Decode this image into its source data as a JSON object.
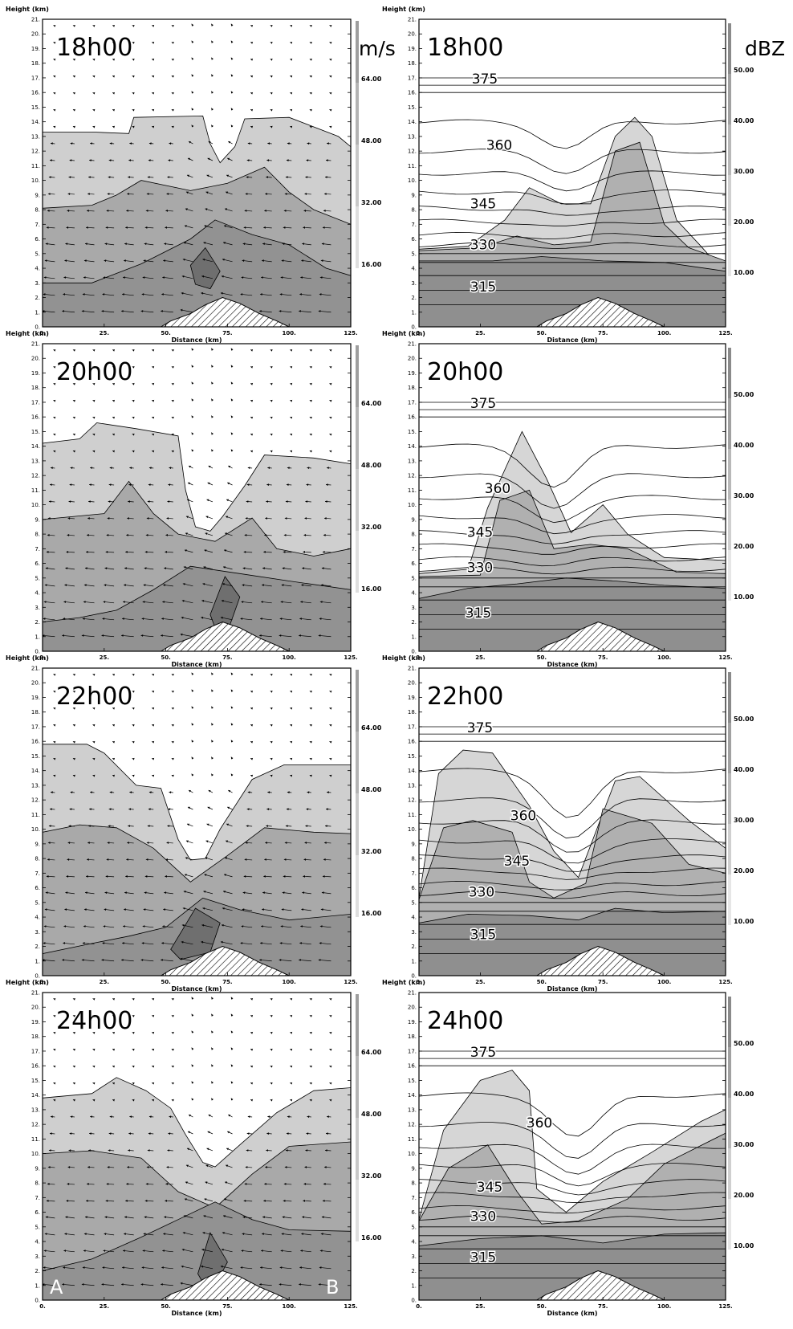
{
  "figure": {
    "y_axis_label": "Height (km)",
    "x_axis_label": "Distance (km)",
    "x_ticks": [
      "0.",
      "25.",
      "50.",
      "75.",
      "100.",
      "125."
    ],
    "y_ticks": [
      "0.",
      "1.",
      "2.",
      "3.",
      "4.",
      "5.",
      "6.",
      "7.",
      "8.",
      "9.",
      "10.",
      "11.",
      "12.",
      "13.",
      "14.",
      "15.",
      "16.",
      "17.",
      "18.",
      "19.",
      "20.",
      "21."
    ],
    "wind_unit": "m/s",
    "refl_unit": "dBZ",
    "wind_scale_labels": [
      "64.00",
      "48.00",
      "32.00",
      "16.00"
    ],
    "refl_scale_labels": [
      "50.00",
      "40.00",
      "30.00",
      "20.00",
      "10.00"
    ],
    "section_end_labels": [
      "A",
      "B"
    ],
    "times": [
      "18h00",
      "20h00",
      "22h00",
      "24h00"
    ],
    "theta_labels": [
      "375",
      "360",
      "345",
      "330",
      "315"
    ]
  },
  "chart_data": [
    {
      "type": "heatmap",
      "panel": "wind",
      "time": "18h00",
      "xlim": [
        0,
        125
      ],
      "ylim": [
        0,
        21
      ],
      "color_levels": [
        16,
        32,
        48,
        64
      ],
      "unit": "m/s"
    },
    {
      "type": "heatmap",
      "panel": "reflectivity",
      "time": "18h00",
      "xlim": [
        0,
        125
      ],
      "ylim": [
        0,
        21
      ],
      "color_levels": [
        10,
        20,
        30,
        40,
        50
      ],
      "unit": "dBZ",
      "theta_contours": [
        375,
        360,
        345,
        330,
        315
      ]
    },
    {
      "type": "heatmap",
      "panel": "wind",
      "time": "20h00",
      "xlim": [
        0,
        125
      ],
      "ylim": [
        0,
        21
      ],
      "color_levels": [
        16,
        32,
        48,
        64
      ],
      "unit": "m/s"
    },
    {
      "type": "heatmap",
      "panel": "reflectivity",
      "time": "20h00",
      "xlim": [
        0,
        125
      ],
      "ylim": [
        0,
        21
      ],
      "color_levels": [
        10,
        20,
        30,
        40,
        50
      ],
      "unit": "dBZ",
      "theta_contours": [
        375,
        360,
        345,
        330,
        315
      ]
    },
    {
      "type": "heatmap",
      "panel": "wind",
      "time": "22h00",
      "xlim": [
        0,
        125
      ],
      "ylim": [
        0,
        21
      ],
      "color_levels": [
        16,
        32,
        48,
        64
      ],
      "unit": "m/s"
    },
    {
      "type": "heatmap",
      "panel": "reflectivity",
      "time": "22h00",
      "xlim": [
        0,
        125
      ],
      "ylim": [
        0,
        21
      ],
      "color_levels": [
        10,
        20,
        30,
        40,
        50
      ],
      "unit": "dBZ",
      "theta_contours": [
        375,
        360,
        345,
        330,
        315
      ]
    },
    {
      "type": "heatmap",
      "panel": "wind",
      "time": "24h00",
      "xlim": [
        0,
        125
      ],
      "ylim": [
        0,
        21
      ],
      "color_levels": [
        16,
        32,
        48,
        64
      ],
      "unit": "m/s"
    },
    {
      "type": "heatmap",
      "panel": "reflectivity",
      "time": "24h00",
      "xlim": [
        0,
        125
      ],
      "ylim": [
        0,
        21
      ],
      "color_levels": [
        10,
        20,
        30,
        40,
        50
      ],
      "unit": "dBZ",
      "theta_contours": [
        375,
        360,
        345,
        330,
        315
      ]
    }
  ]
}
